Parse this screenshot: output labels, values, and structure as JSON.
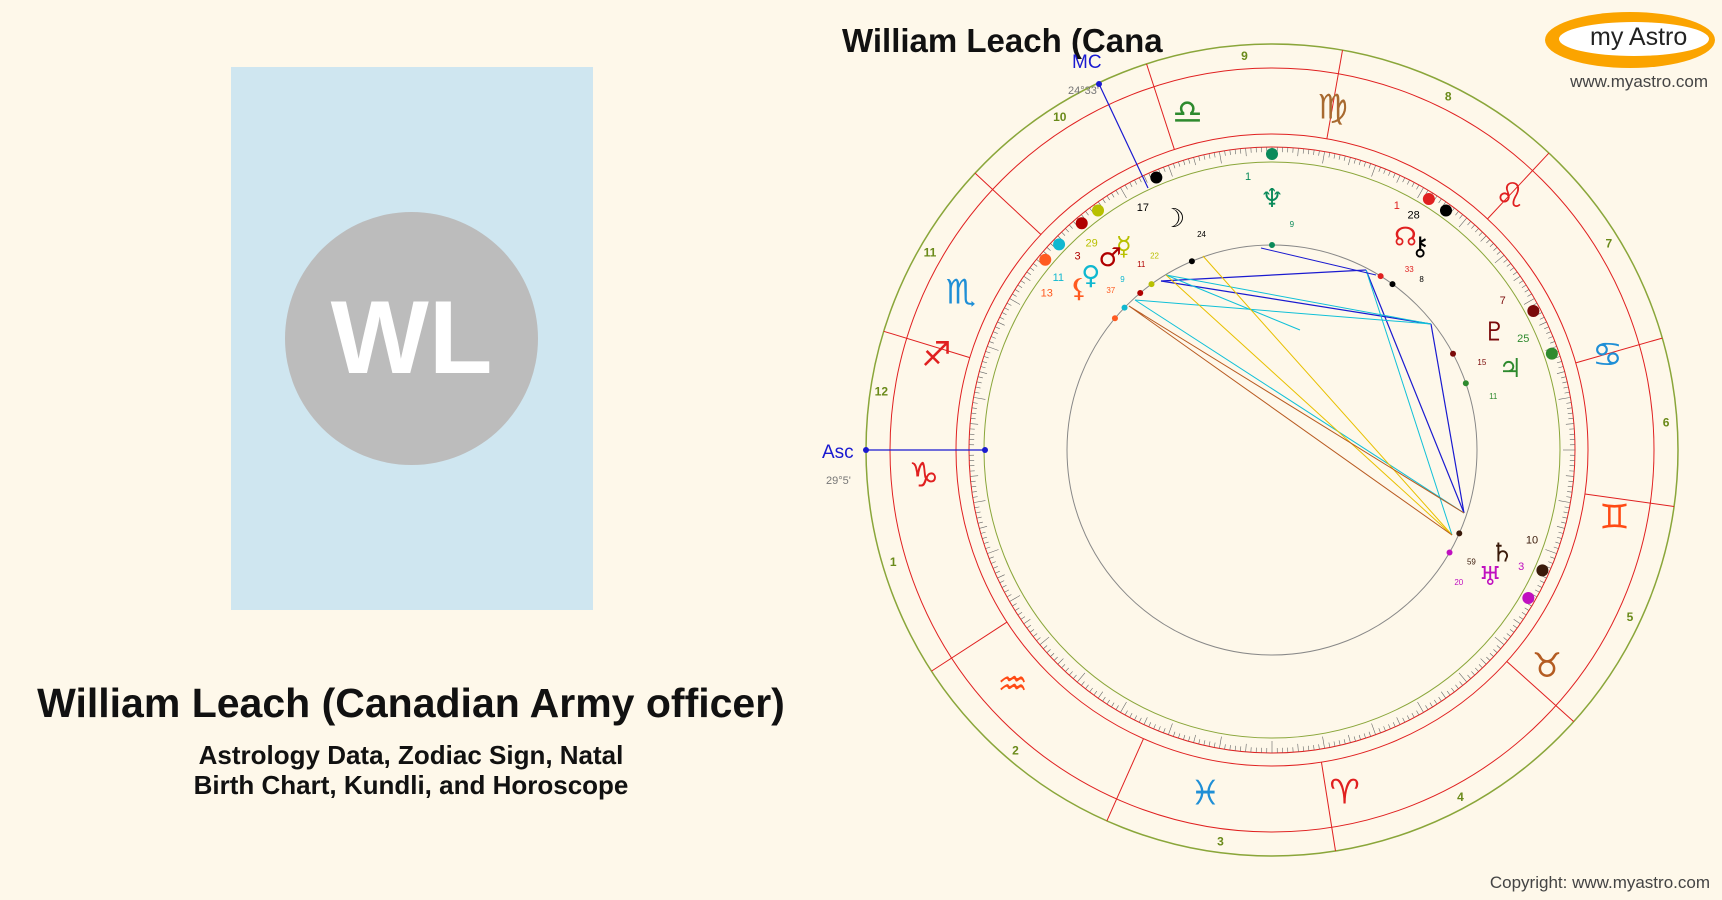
{
  "person": {
    "initials": "WL",
    "name": "William Leach (Canadian Army officer)",
    "subtitle_line1": "Astrology Data, Zodiac Sign, Natal",
    "subtitle_line2": "Birth Chart, Kundli, and Horoscope"
  },
  "chart": {
    "title": "William Leach (Cana",
    "asc_label": "Asc",
    "asc_degree": "29°5'",
    "mc_label": "MC",
    "mc_degree": "24°33'",
    "houses": [
      {
        "num": "1",
        "angle": 180
      },
      {
        "num": "2",
        "angle": 213
      },
      {
        "num": "3",
        "angle": 246
      },
      {
        "num": "4",
        "angle": 279
      },
      {
        "num": "5",
        "angle": 318
      },
      {
        "num": "6",
        "angle": 352
      },
      {
        "num": "7",
        "angle": 16
      },
      {
        "num": "8",
        "angle": 47
      },
      {
        "num": "9",
        "angle": 80
      },
      {
        "num": "10",
        "angle": 108
      },
      {
        "num": "11",
        "angle": 137
      },
      {
        "num": "12",
        "angle": 163
      }
    ],
    "signs": [
      {
        "glyph": "♑",
        "name": "capricorn-icon",
        "angle": 184,
        "color": "#e02020"
      },
      {
        "glyph": "♒",
        "name": "aquarius-icon",
        "angle": 222,
        "color": "#ff4a14"
      },
      {
        "glyph": "♓",
        "name": "pisces-icon",
        "angle": 259,
        "color": "#1f8fd6"
      },
      {
        "glyph": "♈",
        "name": "aries-icon",
        "angle": 282,
        "color": "#e02020"
      },
      {
        "glyph": "♉",
        "name": "taurus-icon",
        "angle": 322,
        "color": "#b45c22"
      },
      {
        "glyph": "♊",
        "name": "gemini-icon",
        "angle": 349,
        "color": "#ff4a14"
      },
      {
        "glyph": "♋",
        "name": "cancer-icon",
        "angle": 16,
        "color": "#1f8fd6"
      },
      {
        "glyph": "♌",
        "name": "leo-icon",
        "angle": 47,
        "color": "#e02020"
      },
      {
        "glyph": "♍",
        "name": "virgo-icon",
        "angle": 80,
        "color": "#a86a30"
      },
      {
        "glyph": "♎",
        "name": "libra-icon",
        "angle": 104,
        "color": "#2e8a2e"
      },
      {
        "glyph": "♏",
        "name": "scorpio-icon",
        "angle": 153,
        "color": "#1f8fd6"
      },
      {
        "glyph": "♐",
        "name": "sagittarius-icon",
        "angle": 164,
        "color": "#e02020"
      }
    ],
    "planets": [
      {
        "glyph": "☽",
        "name": "moon-icon",
        "deg": "17",
        "min": "24",
        "angle": 113,
        "color": "#000000"
      },
      {
        "glyph": "♆",
        "name": "neptune-icon",
        "deg": "1",
        "min": "9",
        "angle": 90,
        "color": "#0a8a5a"
      },
      {
        "glyph": "☊",
        "name": "node-icon",
        "deg": "1",
        "min": "33",
        "angle": 58,
        "color": "#e02020"
      },
      {
        "glyph": "⚷",
        "name": "chiron-icon",
        "deg": "28",
        "min": "8",
        "angle": 54,
        "color": "#000000"
      },
      {
        "glyph": "♇",
        "name": "pluto-icon",
        "deg": "7",
        "min": "15",
        "angle": 28,
        "color": "#7a0a0a"
      },
      {
        "glyph": "♃",
        "name": "jupiter-icon",
        "deg": "25",
        "min": "11",
        "angle": 19,
        "color": "#2e8a2e"
      },
      {
        "glyph": "♄",
        "name": "saturn-icon",
        "deg": "10",
        "min": "59",
        "angle": 336,
        "color": "#3a1a0a"
      },
      {
        "glyph": "♅",
        "name": "uranus-icon",
        "deg": "3",
        "min": "20",
        "angle": 330,
        "color": "#c010c0"
      },
      {
        "glyph": "☿",
        "name": "mercury-icon",
        "deg": "29",
        "min": "22",
        "angle": 126,
        "color": "#b8c000"
      },
      {
        "glyph": "♂",
        "name": "mars-icon",
        "deg": "3",
        "min": "11",
        "angle": 130,
        "color": "#b00000"
      },
      {
        "glyph": "♀",
        "name": "venus-icon",
        "deg": "11",
        "min": "9",
        "angle": 136,
        "color": "#10b8d0"
      },
      {
        "glyph": "⚸",
        "name": "lilith-icon",
        "deg": "13",
        "min": "37",
        "angle": 140,
        "color": "#ff5a20"
      }
    ]
  },
  "brand": {
    "logo": "my Astro",
    "site": "www.myastro.com",
    "copyright": "Copyright: www.myastro.com"
  }
}
